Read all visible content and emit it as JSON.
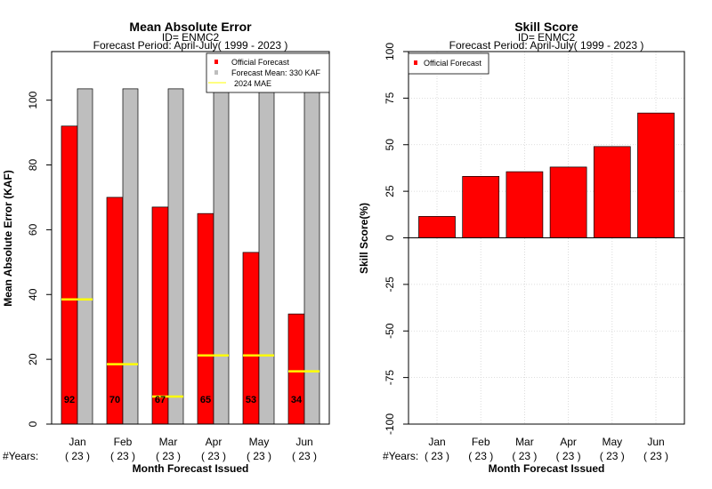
{
  "chart_data": [
    {
      "type": "bar",
      "title": "Mean Absolute Error",
      "subtitle_id": "ID= ENMC2",
      "subtitle_period": "Forecast Period: April-July( 1999 - 2023 )",
      "ylabel": "Mean Absolute Error (KAF)",
      "xlabel": "Month Forecast Issued",
      "ylim": [
        0,
        115
      ],
      "yticks": [
        0,
        20,
        40,
        60,
        80,
        100
      ],
      "categories": [
        "Jan",
        "Feb",
        "Mar",
        "Apr",
        "May",
        "Jun"
      ],
      "years_label": "#Years:",
      "years": [
        "( 23 )",
        "( 23 )",
        "( 23 )",
        "( 23 )",
        "( 23 )",
        "( 23 )"
      ],
      "series": [
        {
          "name": "Official Forecast",
          "color": "#ff0000",
          "values": [
            92,
            70,
            67,
            65,
            53,
            34
          ]
        },
        {
          "name": "Forecast Mean: 330 KAF",
          "color": "#bebebe",
          "values": [
            103.5,
            103.5,
            103.5,
            103.5,
            103.5,
            103.5
          ]
        },
        {
          "name": "2024  MAE",
          "color": "#ffff00",
          "values": [
            38.5,
            18.5,
            8.5,
            21.2,
            21.2,
            16.3
          ]
        }
      ],
      "bar_labels": [
        "92",
        "70",
        "67",
        "65",
        "53",
        "34"
      ],
      "legend_position": "top-right",
      "grid": false
    },
    {
      "type": "bar",
      "title": "Skill Score",
      "subtitle_id": "ID= ENMC2",
      "subtitle_period": "Forecast Period: April-July( 1999 - 2023 )",
      "ylabel": "Skill Score(%)",
      "xlabel": "Month Forecast Issued",
      "ylim": [
        -100,
        100
      ],
      "yticks": [
        -100,
        -75,
        -50,
        -25,
        0,
        25,
        50,
        75,
        100
      ],
      "categories": [
        "Jan",
        "Feb",
        "Mar",
        "Apr",
        "May",
        "Jun"
      ],
      "years_label": "#Years:",
      "years": [
        "( 23 )",
        "( 23 )",
        "( 23 )",
        "( 23 )",
        "( 23 )",
        "( 23 )"
      ],
      "series": [
        {
          "name": "Official Forecast",
          "color": "#ff0000",
          "values": [
            11.5,
            33,
            35.5,
            38,
            49,
            67
          ]
        }
      ],
      "legend_position": "top-left",
      "grid": true
    }
  ]
}
